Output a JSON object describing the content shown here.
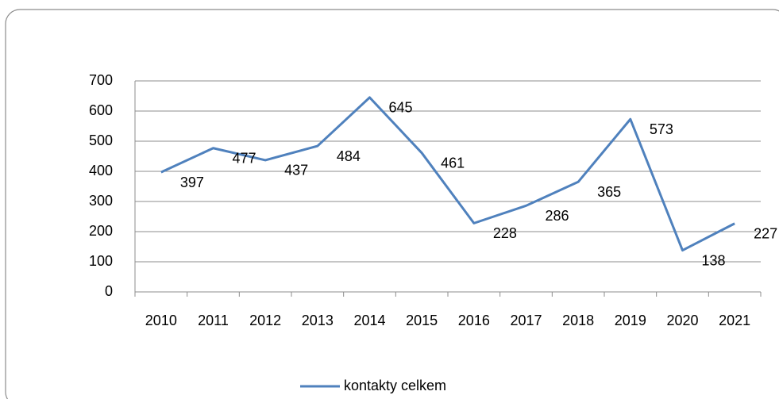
{
  "chart_data": {
    "type": "line",
    "categories": [
      "2010",
      "2011",
      "2012",
      "2013",
      "2014",
      "2015",
      "2016",
      "2017",
      "2018",
      "2019",
      "2020",
      "2021"
    ],
    "series": [
      {
        "name": "kontakty celkem",
        "color": "#4f81bd",
        "values": [
          397,
          477,
          437,
          484,
          645,
          461,
          228,
          286,
          365,
          573,
          138,
          227
        ]
      }
    ],
    "ylim": [
      0,
      700
    ],
    "yticks": [
      0,
      100,
      200,
      300,
      400,
      500,
      600,
      700
    ],
    "grid": true,
    "legend": "bottom"
  }
}
